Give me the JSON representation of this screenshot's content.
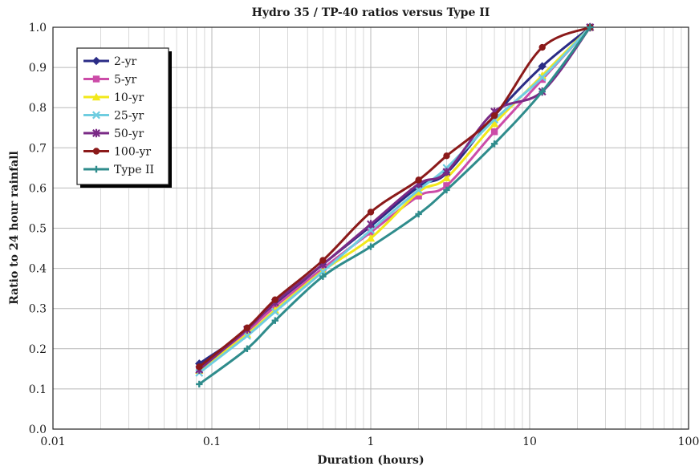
{
  "chart_data": {
    "type": "line",
    "title": "Hydro 35 / TP-40 ratios versus Type II",
    "xlabel": "Duration (hours)",
    "ylabel": "Ratio to 24 hour rainfall",
    "xscale": "log",
    "xlim": [
      0.01,
      100
    ],
    "ylim": [
      0.0,
      1.0
    ],
    "x_ticks": [
      "0.01",
      "0.1",
      "1",
      "10",
      "100"
    ],
    "y_ticks": [
      "0.0",
      "0.1",
      "0.2",
      "0.3",
      "0.4",
      "0.5",
      "0.6",
      "0.7",
      "0.8",
      "0.9",
      "1.0"
    ],
    "grid": true,
    "legend_position": "top-left",
    "x": [
      0.0833,
      0.1667,
      0.25,
      0.5,
      1,
      2,
      3,
      6,
      12,
      24
    ],
    "series": [
      {
        "name": "2-yr",
        "color": "#2b2c86",
        "marker": "diamond",
        "values": [
          0.163,
          0.244,
          0.308,
          0.41,
          0.505,
          0.603,
          0.637,
          0.78,
          0.903,
          1.0
        ]
      },
      {
        "name": "5-yr",
        "color": "#cc4ca8",
        "marker": "square",
        "values": [
          0.15,
          0.244,
          0.305,
          0.4,
          0.49,
          0.58,
          0.606,
          0.74,
          0.87,
          1.0
        ]
      },
      {
        "name": "10-yr",
        "color": "#f2e81a",
        "marker": "triangle",
        "values": [
          0.146,
          0.236,
          0.296,
          0.394,
          0.475,
          0.59,
          0.625,
          0.76,
          0.88,
          1.0
        ]
      },
      {
        "name": "25-yr",
        "color": "#6fcde0",
        "marker": "x",
        "values": [
          0.14,
          0.232,
          0.292,
          0.392,
          0.495,
          0.595,
          0.65,
          0.77,
          0.875,
          1.0
        ]
      },
      {
        "name": "50-yr",
        "color": "#7a2a86",
        "marker": "star",
        "values": [
          0.148,
          0.248,
          0.315,
          0.41,
          0.51,
          0.61,
          0.64,
          0.79,
          0.84,
          1.0
        ]
      },
      {
        "name": "100-yr",
        "color": "#8b1a1a",
        "marker": "circle",
        "values": [
          0.155,
          0.252,
          0.322,
          0.42,
          0.54,
          0.62,
          0.68,
          0.78,
          0.95,
          1.0
        ]
      },
      {
        "name": "Type II",
        "color": "#2f8c8c",
        "marker": "plus",
        "values": [
          0.112,
          0.2,
          0.27,
          0.38,
          0.454,
          0.535,
          0.595,
          0.71,
          0.84,
          1.0
        ]
      }
    ]
  }
}
